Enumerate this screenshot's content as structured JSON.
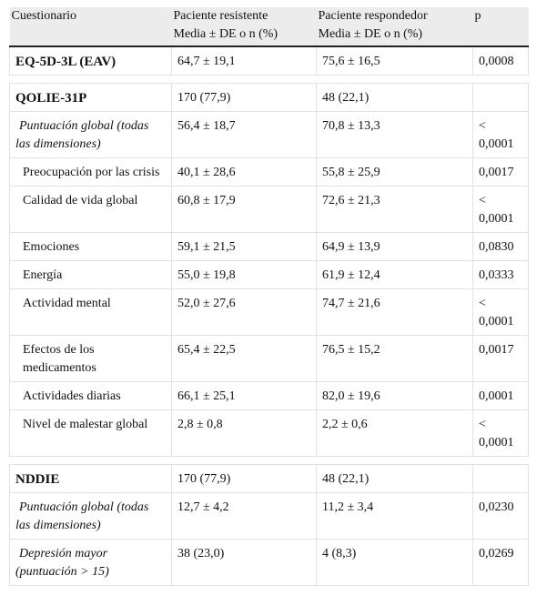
{
  "header": {
    "col1": "Cuestionario",
    "col2_line1": "Paciente resistente",
    "col2_line2": "Media ± DE o n (%)",
    "col3_line1": "Paciente respondedor",
    "col3_line2": "Media ± DE o n (%)",
    "col4": "p"
  },
  "rows": {
    "eq5d": {
      "label": "EQ-5D-3L (EAV)",
      "res": "64,7 ± 19,1",
      "resp": "75,6 ± 16,5",
      "p": "0,0008"
    },
    "qolie": {
      "label": "QOLIE-31P",
      "res": "170 (77,9)",
      "resp": "48 (22,1)",
      "p": ""
    },
    "q_glob": {
      "label": "Puntuación global (todas las dimensiones)",
      "res": "56,4 ± 18,7",
      "resp": "70,8 ± 13,3",
      "p": "< 0,0001"
    },
    "q_preo": {
      "label": "Preocupación por las crisis",
      "res": "40,1 ± 28,6",
      "resp": "55,8 ± 25,9",
      "p": "0,0017"
    },
    "q_cal": {
      "label": "Calidad de vida global",
      "res": "60,8 ± 17,9",
      "resp": "72,6 ± 21,3",
      "p": "< 0,0001"
    },
    "q_emo": {
      "label": "Emociones",
      "res": "59,1 ± 21,5",
      "resp": "64,9 ± 13,9",
      "p": "0,0830"
    },
    "q_ene": {
      "label": "Energía",
      "res": "55,0 ± 19,8",
      "resp": "61,9 ± 12,4",
      "p": "0,0333"
    },
    "q_act": {
      "label": "Actividad mental",
      "res": "52,0 ± 27,6",
      "resp": "74,7 ± 21,6",
      "p": "< 0,0001"
    },
    "q_efe": {
      "label": "Efectos de los medicamentos",
      "res": "65,4 ± 22,5",
      "resp": "76,5 ± 15,2",
      "p": "0,0017"
    },
    "q_dia": {
      "label": "Actividades diarias",
      "res": "66,1 ± 25,1",
      "resp": "82,0 ± 19,6",
      "p": "0,0001"
    },
    "q_mal": {
      "label": "Nivel de malestar global",
      "res": "2,8 ± 0,8",
      "resp": "2,2 ± 0,6",
      "p": "< 0,0001"
    },
    "nddie": {
      "label": "NDDIE",
      "res": "170 (77,9)",
      "resp": "48 (22,1)",
      "p": ""
    },
    "n_glob": {
      "label": "Puntuación global (todas las dimensiones)",
      "res": "12,7 ± 4,2",
      "resp": "11,2 ± 3,4",
      "p": "0,0230"
    },
    "n_dep": {
      "label": "Depresión mayor (puntuación > 15)",
      "res": "38 (23,0)",
      "resp": "4 (8,3)",
      "p": "0,0269"
    }
  }
}
